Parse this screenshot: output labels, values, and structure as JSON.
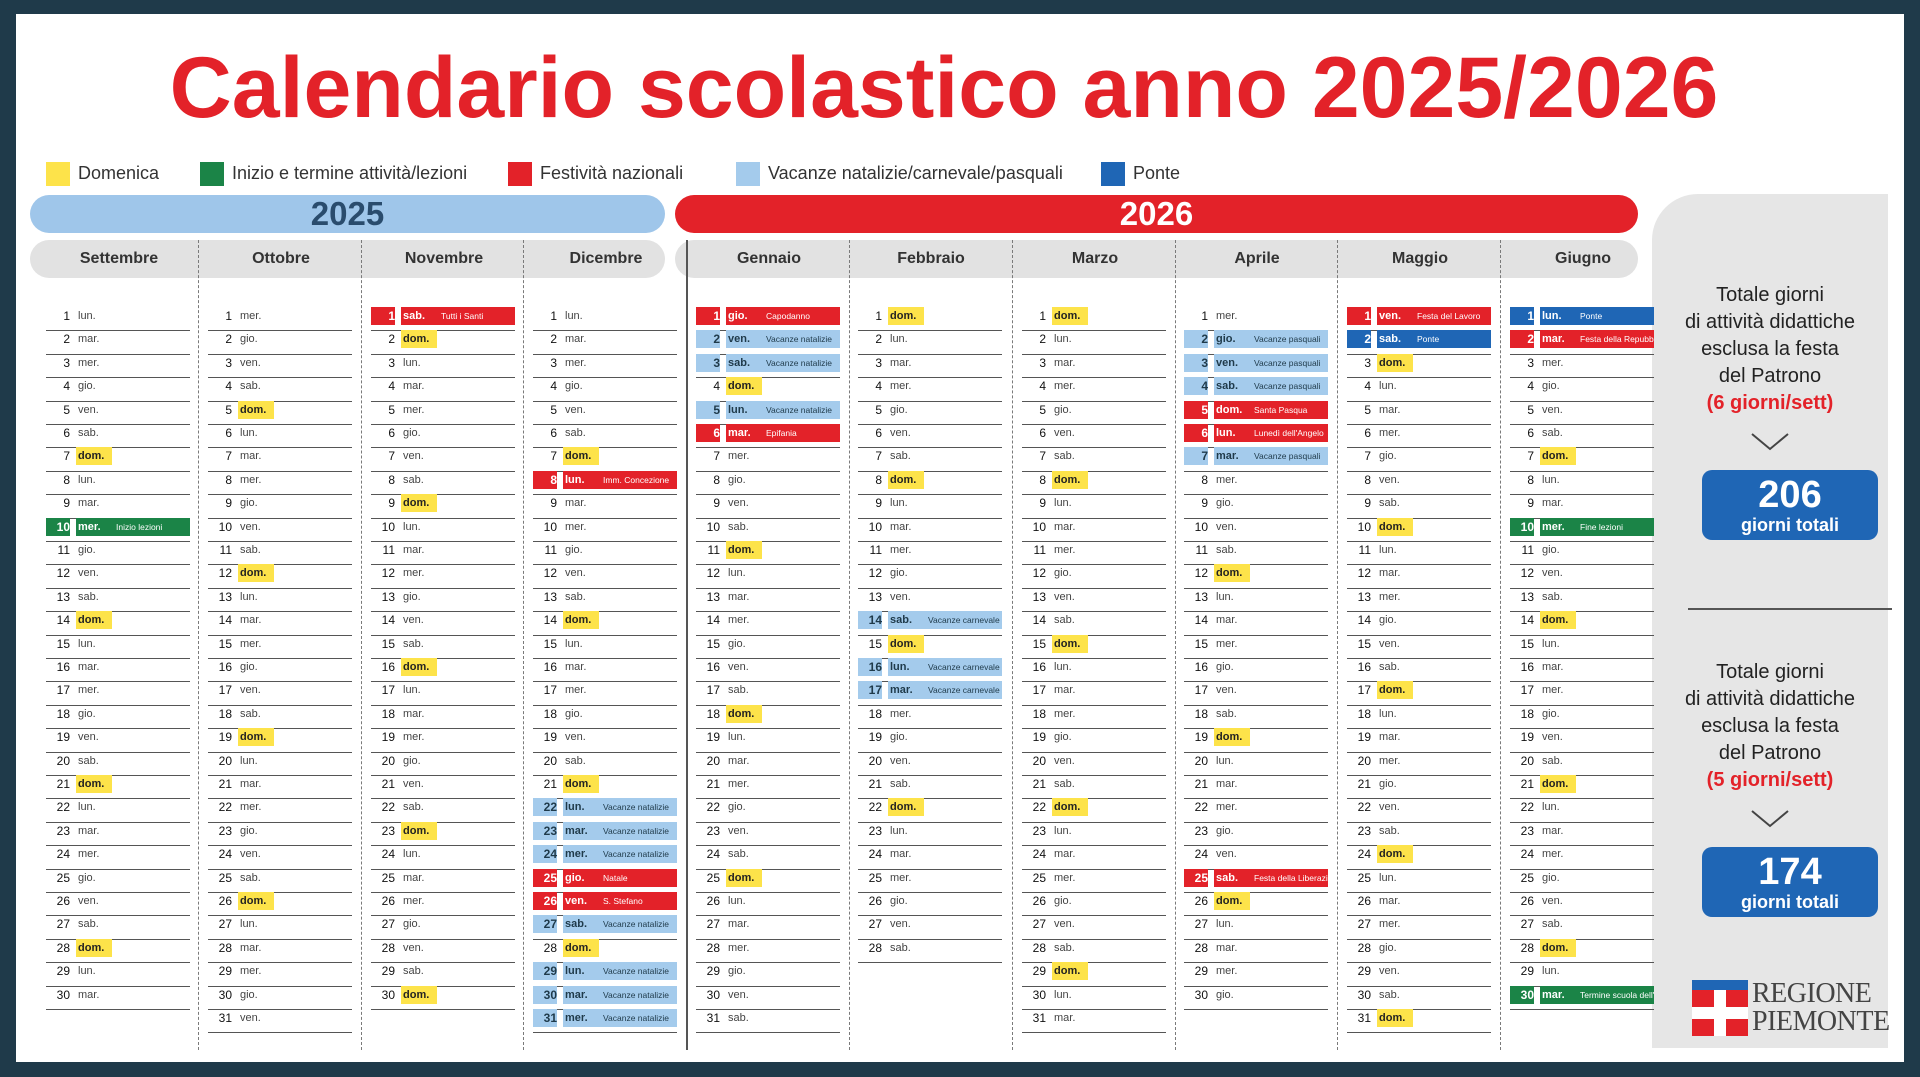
{
  "title": "Calendario scolastico anno 2025/2026",
  "colors": {
    "domenica": "#fde34a",
    "inizio_termine": "#1b8447",
    "festivita": "#e32229",
    "vacanze": "#a4cbec",
    "ponte": "#1f66b5"
  },
  "legend": [
    {
      "type": "sun",
      "label": "Domenica"
    },
    {
      "type": "green",
      "label": "Inizio e termine attività/lezioni"
    },
    {
      "type": "red",
      "label": "Festività nazionali"
    },
    {
      "type": "lblue",
      "label": "Vacanze natalizie/carnevale/pasquali"
    },
    {
      "type": "blue",
      "label": "Ponte"
    }
  ],
  "years": {
    "y2025": "2025",
    "y2026": "2026"
  },
  "months": [
    {
      "name": "Settembre",
      "start": 1,
      "days": 30,
      "special": {
        "10": [
          "green",
          "Inizio lezioni"
        ]
      }
    },
    {
      "name": "Ottobre",
      "start": 3,
      "days": 31,
      "special": {}
    },
    {
      "name": "Novembre",
      "start": 6,
      "days": 30,
      "special": {
        "1": [
          "red",
          "Tutti i Santi"
        ]
      }
    },
    {
      "name": "Dicembre",
      "start": 1,
      "days": 31,
      "special": {
        "8": [
          "red",
          "Imm. Concezione"
        ],
        "22": [
          "lblue",
          "Vacanze natalizie"
        ],
        "23": [
          "lblue",
          "Vacanze natalizie"
        ],
        "24": [
          "lblue",
          "Vacanze natalizie"
        ],
        "25": [
          "red",
          "Natale"
        ],
        "26": [
          "red",
          "S. Stefano"
        ],
        "27": [
          "lblue",
          "Vacanze natalizie"
        ],
        "29": [
          "lblue",
          "Vacanze natalizie"
        ],
        "30": [
          "lblue",
          "Vacanze natalizie"
        ],
        "31": [
          "lblue",
          "Vacanze natalizie"
        ]
      }
    },
    {
      "name": "Gennaio",
      "start": 4,
      "days": 31,
      "special": {
        "1": [
          "red",
          "Capodanno"
        ],
        "2": [
          "lblue",
          "Vacanze natalizie"
        ],
        "3": [
          "lblue",
          "Vacanze natalizie"
        ],
        "5": [
          "lblue",
          "Vacanze natalizie"
        ],
        "6": [
          "red",
          "Epifania"
        ]
      }
    },
    {
      "name": "Febbraio",
      "start": 0,
      "days": 28,
      "special": {
        "14": [
          "lblue",
          "Vacanze carnevale"
        ],
        "16": [
          "lblue",
          "Vacanze carnevale"
        ],
        "17": [
          "lblue",
          "Vacanze carnevale"
        ]
      }
    },
    {
      "name": "Marzo",
      "start": 0,
      "days": 31,
      "special": {}
    },
    {
      "name": "Aprile",
      "start": 3,
      "days": 30,
      "special": {
        "2": [
          "lblue",
          "Vacanze pasquali"
        ],
        "3": [
          "lblue",
          "Vacanze pasquali"
        ],
        "4": [
          "lblue",
          "Vacanze pasquali"
        ],
        "5": [
          "red",
          "Santa Pasqua"
        ],
        "6": [
          "red",
          "Lunedì dell'Angelo"
        ],
        "7": [
          "lblue",
          "Vacanze pasquali"
        ],
        "25": [
          "red",
          "Festa della Liberazione"
        ]
      }
    },
    {
      "name": "Maggio",
      "start": 5,
      "days": 31,
      "special": {
        "1": [
          "red",
          "Festa del Lavoro"
        ],
        "2": [
          "blue",
          "Ponte"
        ]
      }
    },
    {
      "name": "Giugno",
      "start": 1,
      "days": 30,
      "special": {
        "1": [
          "blue",
          "Ponte"
        ],
        "2": [
          "red",
          "Festa della Repubblica"
        ],
        "10": [
          "green",
          "Fine lezioni"
        ],
        "30": [
          "green",
          "Termine scuola dell'infanzia"
        ]
      }
    }
  ],
  "weekdays": [
    "dom.",
    "lun.",
    "mar.",
    "mer.",
    "gio.",
    "ven.",
    "sab."
  ],
  "totals": [
    {
      "line1": "Totale giorni",
      "line2": "di attività didattiche",
      "line3": "esclusa la festa",
      "line4": "del Patrono",
      "highlight": "(6 giorni/sett)",
      "value": "206",
      "unit": "giorni totali"
    },
    {
      "line1": "Totale giorni",
      "line2": "di attività didattiche",
      "line3": "esclusa la festa",
      "line4": "del Patrono",
      "highlight": "(5 giorni/sett)",
      "value": "174",
      "unit": "giorni totali"
    }
  ],
  "logo": {
    "line1": "REGIONE",
    "line2": "PIEMONTE"
  }
}
